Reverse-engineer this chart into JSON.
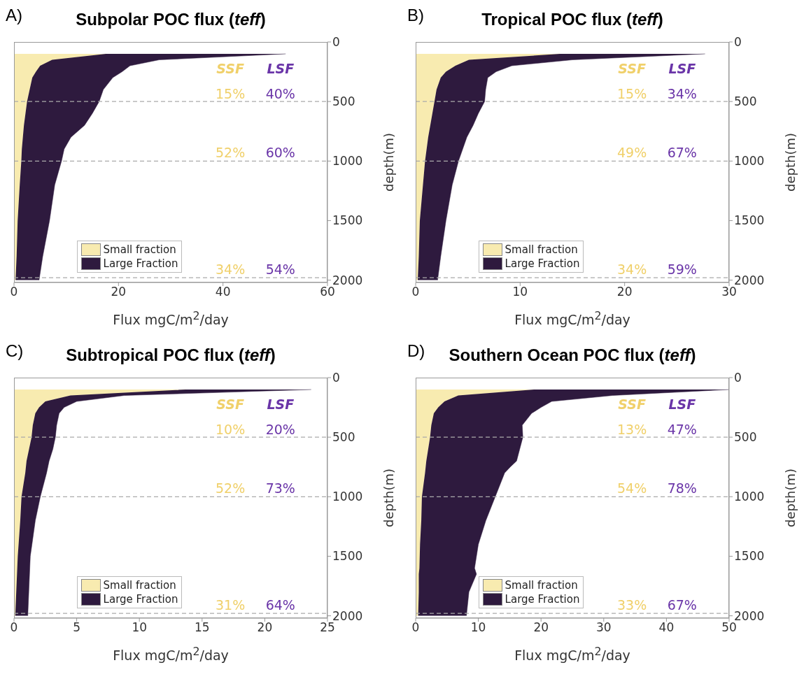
{
  "chart_data": [
    {
      "type": "area",
      "title": "Subpolar POC flux (teff)",
      "xlabel": "Flux mgC/m$^{2}$/day",
      "ylabel": "depth(m)",
      "stacked": true,
      "orientation": "horizontal",
      "legend": "bottom left",
      "x": [
        100,
        150,
        200,
        250,
        300,
        400,
        500,
        600,
        700,
        800,
        900,
        1000,
        1200,
        1500,
        1800,
        2000
      ],
      "series": [
        {
          "name": "Small fraction",
          "color": "#f8ebb0",
          "values": [
            17.6,
            7.3,
            5.0,
            4.2,
            3.5,
            3.0,
            2.5,
            2.2,
            1.9,
            1.7,
            1.5,
            1.4,
            1.1,
            0.7,
            0.5,
            0.3
          ]
        },
        {
          "name": "Large Fraction",
          "color": "#2e1a3e",
          "values": [
            34.4,
            20.5,
            17.2,
            16.5,
            15.4,
            14.1,
            13.8,
            12.8,
            11.6,
            9.2,
            8.1,
            7.7,
            6.7,
            6.1,
            5.0,
            4.5
          ]
        }
      ],
      "xlim": [
        0,
        60
      ],
      "xticks": [
        0,
        20,
        40,
        60
      ],
      "ylim": [
        2020,
        0
      ],
      "yticks": [
        0,
        500,
        1000,
        1500,
        2000
      ],
      "ref_lines": [
        {
          "axis": "y",
          "value": 500,
          "color": "#aaaaaa",
          "line_style": "dashed"
        },
        {
          "axis": "y",
          "value": 1000,
          "color": "#aaaaaa",
          "line_style": "dashed"
        },
        {
          "axis": "y",
          "value": 1980,
          "color": "#aaaaaa",
          "line_style": "dashed"
        }
      ],
      "annotations": [
        "A)",
        "SSF",
        "LSF",
        "15%",
        "40%",
        "52%",
        "60%",
        "34%",
        "54%"
      ]
    },
    {
      "type": "area",
      "title": "Tropical POC flux (teff)",
      "xlabel": "Flux mgC/m$^{2}$/day",
      "ylabel": "depth(m)",
      "stacked": true,
      "orientation": "horizontal",
      "legend": "bottom left",
      "x": [
        100,
        150,
        200,
        250,
        300,
        400,
        500,
        600,
        700,
        800,
        1000,
        1200,
        1500,
        1800,
        2000
      ],
      "series": [
        {
          "name": "Small fraction",
          "color": "#f8ebb0",
          "values": [
            13.8,
            5.1,
            3.8,
            2.9,
            2.4,
            2.0,
            1.8,
            1.6,
            1.4,
            1.2,
            0.9,
            0.7,
            0.4,
            0.3,
            0.2
          ]
        },
        {
          "name": "Large Fraction",
          "color": "#2e1a3e",
          "values": [
            13.9,
            9.9,
            5.4,
            4.8,
            4.5,
            4.7,
            4.8,
            4.4,
            4.1,
            3.7,
            3.2,
            2.8,
            2.5,
            2.1,
            1.9
          ]
        }
      ],
      "xlim": [
        0,
        30
      ],
      "xticks": [
        0,
        10,
        20,
        30
      ],
      "ylim": [
        2020,
        0
      ],
      "yticks": [
        0,
        500,
        1000,
        1500,
        2000
      ],
      "ref_lines": [
        {
          "axis": "y",
          "value": 500,
          "color": "#aaaaaa",
          "line_style": "dashed"
        },
        {
          "axis": "y",
          "value": 1000,
          "color": "#aaaaaa",
          "line_style": "dashed"
        },
        {
          "axis": "y",
          "value": 1980,
          "color": "#aaaaaa",
          "line_style": "dashed"
        }
      ],
      "annotations": [
        "B)",
        "SSF",
        "LSF",
        "15%",
        "34%",
        "49%",
        "67%",
        "34%",
        "59%"
      ]
    },
    {
      "type": "area",
      "title": "Subtropical POC flux (teff)",
      "xlabel": "Flux mgC/m$^{2}$/day",
      "ylabel": "depth(m)",
      "stacked": true,
      "orientation": "horizontal",
      "legend": "bottom left",
      "x": [
        100,
        150,
        200,
        250,
        300,
        400,
        500,
        600,
        700,
        800,
        1000,
        1200,
        1500,
        2000
      ],
      "series": [
        {
          "name": "Small fraction",
          "color": "#f8ebb0",
          "values": [
            13.7,
            4.5,
            2.5,
            2.0,
            1.7,
            1.5,
            1.4,
            1.2,
            1.0,
            0.9,
            0.6,
            0.5,
            0.3,
            0.1
          ]
        },
        {
          "name": "Large Fraction",
          "color": "#2e1a3e",
          "values": [
            10.0,
            4.3,
            2.5,
            2.0,
            1.9,
            1.9,
            1.9,
            1.9,
            1.8,
            1.7,
            1.5,
            1.2,
            1.0,
            1.0
          ]
        }
      ],
      "xlim": [
        0,
        25
      ],
      "xticks": [
        0,
        5,
        10,
        15,
        20,
        25
      ],
      "ylim": [
        2020,
        0
      ],
      "yticks": [
        0,
        500,
        1000,
        1500,
        2000
      ],
      "ref_lines": [
        {
          "axis": "y",
          "value": 500,
          "color": "#aaaaaa",
          "line_style": "dashed"
        },
        {
          "axis": "y",
          "value": 1000,
          "color": "#aaaaaa",
          "line_style": "dashed"
        },
        {
          "axis": "y",
          "value": 1980,
          "color": "#aaaaaa",
          "line_style": "dashed"
        }
      ],
      "annotations": [
        "C)",
        "SSF",
        "LSF",
        "10%",
        "20%",
        "52%",
        "73%",
        "31%",
        "64%"
      ]
    },
    {
      "type": "area",
      "title": "Southern Ocean POC flux (teff)",
      "xlabel": "Flux mgC/m$^{2}$/day",
      "ylabel": "depth(m)",
      "stacked": true,
      "orientation": "horizontal",
      "legend": "bottom left",
      "x": [
        100,
        150,
        200,
        250,
        300,
        400,
        500,
        600,
        700,
        750,
        800,
        1000,
        1200,
        1400,
        1600,
        1650,
        1800,
        2000
      ],
      "series": [
        {
          "name": "Small fraction",
          "color": "#f8ebb0",
          "values": [
            18.9,
            6.8,
            4.6,
            3.6,
            2.9,
            2.5,
            2.3,
            2.0,
            1.7,
            1.6,
            1.5,
            1.0,
            0.9,
            0.7,
            0.6,
            0.5,
            0.5,
            0.4
          ]
        },
        {
          "name": "Large Fraction",
          "color": "#2e1a3e",
          "values": [
            31.1,
            24.6,
            17.1,
            16.4,
            15.6,
            14.5,
            14.8,
            14.6,
            14.4,
            13.5,
            12.7,
            11.7,
            10.3,
            9.3,
            8.8,
            9.2,
            8.0,
            7.7
          ]
        }
      ],
      "xlim": [
        0,
        50
      ],
      "xticks": [
        0,
        10,
        20,
        30,
        40,
        50
      ],
      "ylim": [
        2020,
        0
      ],
      "yticks": [
        0,
        500,
        1000,
        1500,
        2000
      ],
      "ref_lines": [
        {
          "axis": "y",
          "value": 500,
          "color": "#aaaaaa",
          "line_style": "dashed"
        },
        {
          "axis": "y",
          "value": 1000,
          "color": "#aaaaaa",
          "line_style": "dashed"
        },
        {
          "axis": "y",
          "value": 1980,
          "color": "#aaaaaa",
          "line_style": "dashed"
        }
      ],
      "annotations": [
        "D)",
        "SSF",
        "LSF",
        "13%",
        "47%",
        "54%",
        "78%",
        "33%",
        "67%"
      ]
    }
  ]
}
